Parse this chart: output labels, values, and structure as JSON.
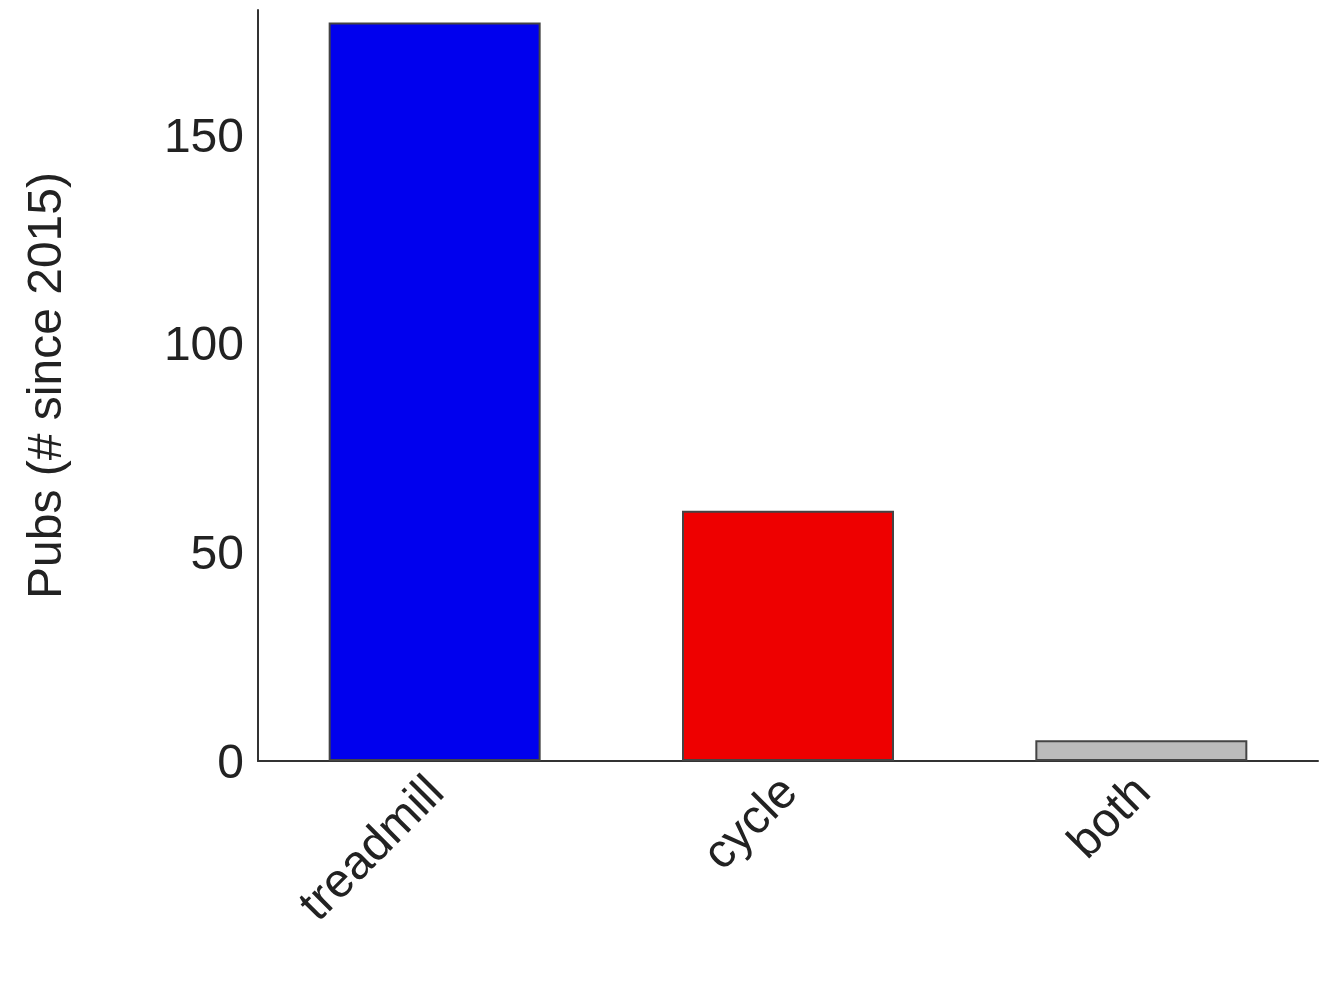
{
  "chart_data": {
    "type": "bar",
    "ylabel": "Pubs (# since 2015)",
    "categories": [
      "treadmill",
      "cycle",
      "both"
    ],
    "values": [
      177,
      60,
      5
    ],
    "colors": [
      "#0000ee",
      "#ee0000",
      "#bbbbbb"
    ],
    "ylim": [
      0,
      180
    ],
    "yticks": [
      0,
      50,
      100,
      150
    ],
    "grid": false
  }
}
